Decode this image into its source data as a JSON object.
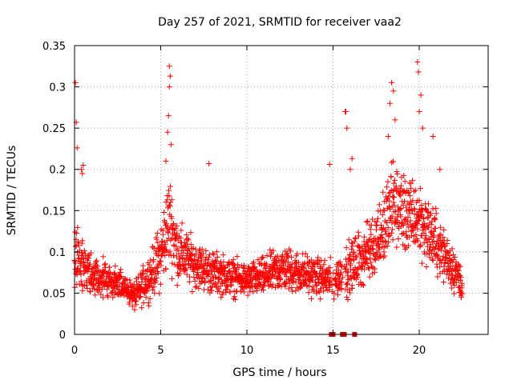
{
  "chart_data": {
    "type": "scatter",
    "title": "Day 257 of 2021, SRMTID for receiver vaa2",
    "xlabel": "GPS time / hours",
    "ylabel": "SRMTID / TECUs",
    "xlim": [
      0,
      24
    ],
    "ylim": [
      0,
      0.35
    ],
    "xticks": [
      0,
      5,
      10,
      15,
      20
    ],
    "xtick_labels": [
      "0",
      "5",
      "10",
      "15",
      "20"
    ],
    "yticks": [
      0,
      0.05,
      0.1,
      0.15,
      0.2,
      0.25,
      0.3,
      0.35
    ],
    "ytick_labels": [
      "0",
      "0.05",
      "0.1",
      "0.15",
      "0.2",
      "0.25",
      "0.3",
      "0.35"
    ],
    "grid": true,
    "marker": "plus",
    "series_color": "#ff0000",
    "gap_marker_color": "#cc0000",
    "data_gaps_hours": [
      14.9,
      15.0,
      15.55,
      15.65,
      16.25
    ],
    "profile": {
      "x": [
        0,
        0.5,
        1,
        2,
        3,
        3.5,
        4,
        4.5,
        5,
        5.5,
        6,
        7,
        8,
        9,
        10,
        11,
        12,
        13,
        14,
        15,
        16,
        17,
        18,
        18.5,
        19,
        19.5,
        20,
        21,
        22,
        22.5
      ],
      "median": [
        0.1,
        0.085,
        0.07,
        0.065,
        0.055,
        0.045,
        0.06,
        0.075,
        0.095,
        0.14,
        0.1,
        0.085,
        0.075,
        0.07,
        0.065,
        0.07,
        0.08,
        0.075,
        0.07,
        0.065,
        0.08,
        0.1,
        0.13,
        0.16,
        0.15,
        0.14,
        0.14,
        0.11,
        0.08,
        0.06
      ],
      "spread": [
        0.04,
        0.035,
        0.025,
        0.022,
        0.02,
        0.018,
        0.025,
        0.03,
        0.045,
        0.06,
        0.04,
        0.03,
        0.028,
        0.025,
        0.022,
        0.025,
        0.03,
        0.028,
        0.025,
        0.025,
        0.035,
        0.04,
        0.05,
        0.06,
        0.055,
        0.05,
        0.05,
        0.04,
        0.03,
        0.02
      ]
    },
    "notable_points": [
      {
        "x": 0.05,
        "y": 0.305
      },
      {
        "x": 0.1,
        "y": 0.257
      },
      {
        "x": 0.15,
        "y": 0.226
      },
      {
        "x": 0.4,
        "y": 0.2
      },
      {
        "x": 0.45,
        "y": 0.195
      },
      {
        "x": 0.5,
        "y": 0.205
      },
      {
        "x": 5.5,
        "y": 0.325
      },
      {
        "x": 5.55,
        "y": 0.313
      },
      {
        "x": 5.5,
        "y": 0.3
      },
      {
        "x": 5.45,
        "y": 0.265
      },
      {
        "x": 5.4,
        "y": 0.245
      },
      {
        "x": 5.6,
        "y": 0.23
      },
      {
        "x": 5.3,
        "y": 0.21
      },
      {
        "x": 7.8,
        "y": 0.207
      },
      {
        "x": 14.8,
        "y": 0.206
      },
      {
        "x": 15.7,
        "y": 0.27
      },
      {
        "x": 15.75,
        "y": 0.27
      },
      {
        "x": 15.8,
        "y": 0.25
      },
      {
        "x": 16.1,
        "y": 0.213
      },
      {
        "x": 16.0,
        "y": 0.2
      },
      {
        "x": 18.4,
        "y": 0.305
      },
      {
        "x": 18.5,
        "y": 0.295
      },
      {
        "x": 18.3,
        "y": 0.28
      },
      {
        "x": 18.6,
        "y": 0.26
      },
      {
        "x": 18.2,
        "y": 0.24
      },
      {
        "x": 19.9,
        "y": 0.33
      },
      {
        "x": 19.95,
        "y": 0.318
      },
      {
        "x": 20.1,
        "y": 0.29
      },
      {
        "x": 20.0,
        "y": 0.27
      },
      {
        "x": 20.2,
        "y": 0.25
      },
      {
        "x": 20.8,
        "y": 0.24
      },
      {
        "x": 21.2,
        "y": 0.2
      }
    ]
  }
}
